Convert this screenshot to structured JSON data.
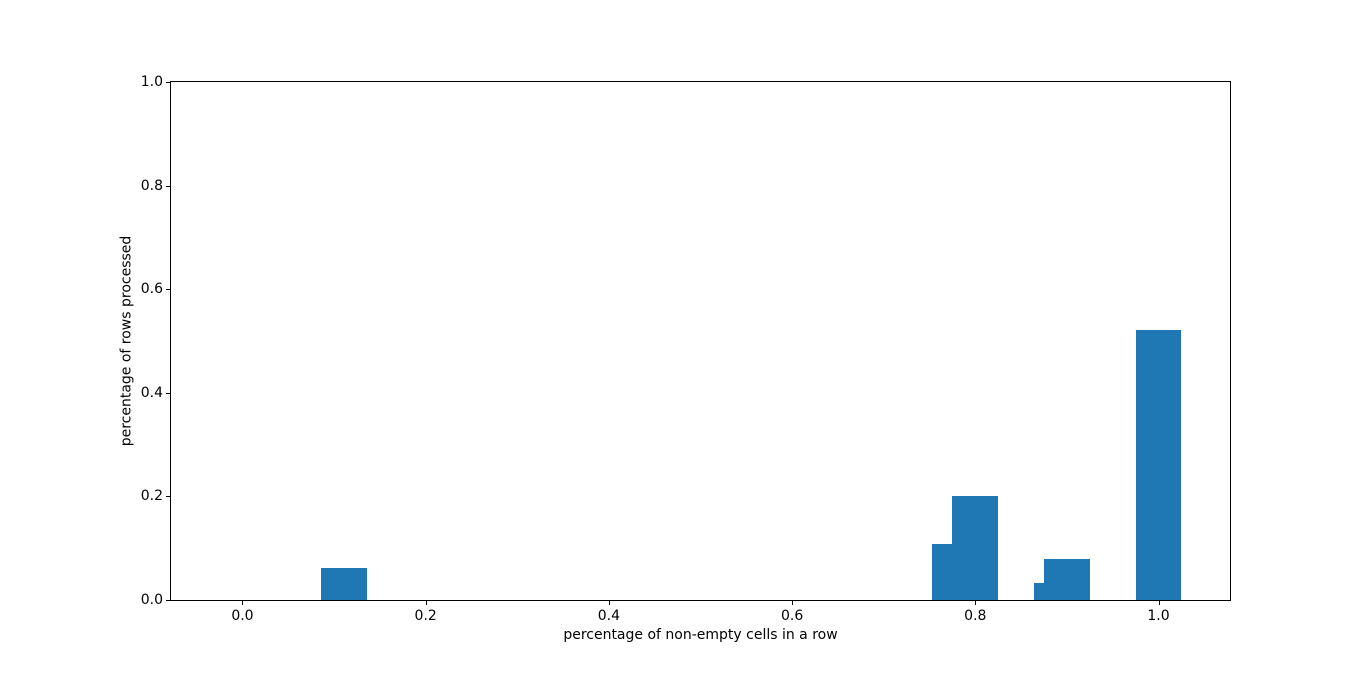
{
  "chart_data": {
    "type": "bar",
    "title": "",
    "xlabel": "percentage of non-empty cells in a row",
    "ylabel": "percentage of rows processed",
    "xlim": [
      -0.078,
      1.078
    ],
    "ylim": [
      0.0,
      1.0
    ],
    "xticks": [
      0.0,
      0.2,
      0.4,
      0.6,
      0.8,
      1.0
    ],
    "yticks": [
      0.0,
      0.2,
      0.4,
      0.6,
      0.8,
      1.0
    ],
    "tick_decimals": 1,
    "grid": false,
    "legend": null,
    "bar_width": 0.05,
    "bar_color": "#1f77b4",
    "background_color": "#ffffff",
    "spine_color": "#000000",
    "bars": [
      {
        "x": 0.111,
        "height": 0.061
      },
      {
        "x": 0.778,
        "height": 0.109
      },
      {
        "x": 0.8,
        "height": 0.201
      },
      {
        "x": 0.889,
        "height": 0.033
      },
      {
        "x": 0.9,
        "height": 0.079
      },
      {
        "x": 1.0,
        "height": 0.522
      }
    ]
  }
}
